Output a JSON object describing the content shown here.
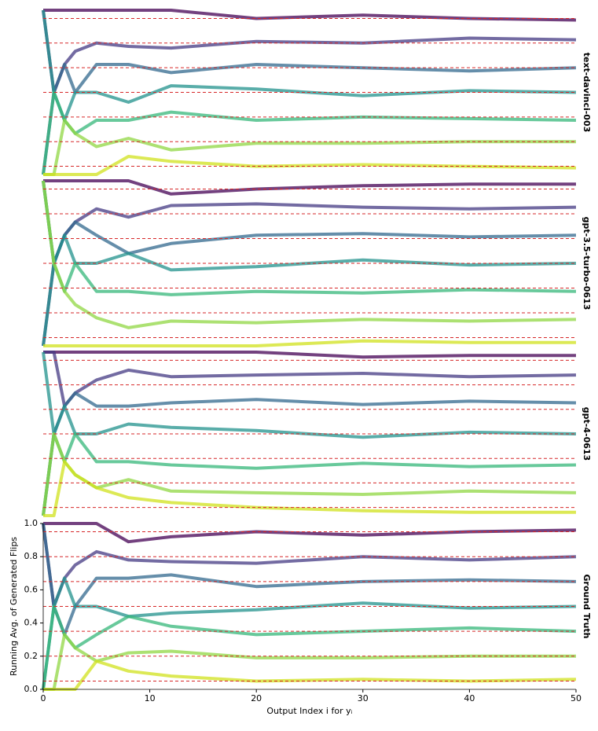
{
  "chart_data": [
    {
      "type": "line",
      "panel_label": "text-davinci-003",
      "x": [
        0,
        1,
        2,
        3,
        5,
        8,
        12,
        20,
        30,
        40,
        50
      ],
      "xlim": [
        0,
        50
      ],
      "ylim": [
        0,
        1
      ],
      "series": [
        {
          "color": "#440154",
          "target": 0.95,
          "values": [
            1,
            1,
            1,
            1,
            1,
            1,
            1,
            0.95,
            0.97,
            0.95,
            0.94
          ]
        },
        {
          "color": "#443a83",
          "target": 0.8,
          "values": [
            1,
            0.5,
            0.67,
            0.75,
            0.8,
            0.78,
            0.77,
            0.81,
            0.8,
            0.83,
            0.82
          ]
        },
        {
          "color": "#31688e",
          "target": 0.65,
          "values": [
            0,
            0.5,
            0.67,
            0.5,
            0.67,
            0.67,
            0.62,
            0.67,
            0.65,
            0.63,
            0.65
          ]
        },
        {
          "color": "#21918c",
          "target": 0.5,
          "values": [
            1,
            0.5,
            0.33,
            0.5,
            0.5,
            0.44,
            0.54,
            0.52,
            0.48,
            0.51,
            0.5
          ]
        },
        {
          "color": "#35b779",
          "target": 0.35,
          "values": [
            0,
            0.5,
            0.33,
            0.25,
            0.33,
            0.33,
            0.38,
            0.33,
            0.35,
            0.34,
            0.33
          ]
        },
        {
          "color": "#90d743",
          "target": 0.2,
          "values": [
            0,
            0,
            0.33,
            0.25,
            0.17,
            0.22,
            0.15,
            0.19,
            0.19,
            0.2,
            0.2
          ]
        },
        {
          "color": "#d0e11c",
          "target": 0.05,
          "values": [
            0,
            0,
            0,
            0,
            0,
            0.11,
            0.08,
            0.05,
            0.06,
            0.05,
            0.04
          ]
        }
      ]
    },
    {
      "type": "line",
      "panel_label": "gpt-3.5-turbo-0613",
      "x": [
        0,
        1,
        2,
        3,
        5,
        8,
        12,
        20,
        30,
        40,
        50
      ],
      "xlim": [
        0,
        50
      ],
      "ylim": [
        0,
        1
      ],
      "series": [
        {
          "color": "#440154",
          "target": 0.95,
          "values": [
            1,
            1,
            1,
            1,
            1,
            1,
            0.92,
            0.95,
            0.97,
            0.98,
            0.98
          ]
        },
        {
          "color": "#443a83",
          "target": 0.8,
          "values": [
            0,
            0.5,
            0.67,
            0.75,
            0.83,
            0.78,
            0.85,
            0.86,
            0.84,
            0.83,
            0.84
          ]
        },
        {
          "color": "#31688e",
          "target": 0.65,
          "values": [
            1,
            0.5,
            0.67,
            0.75,
            0.67,
            0.56,
            0.62,
            0.67,
            0.68,
            0.66,
            0.67
          ]
        },
        {
          "color": "#21918c",
          "target": 0.5,
          "values": [
            0,
            0.5,
            0.67,
            0.5,
            0.5,
            0.56,
            0.46,
            0.48,
            0.52,
            0.49,
            0.5
          ]
        },
        {
          "color": "#35b779",
          "target": 0.35,
          "values": [
            1,
            0.5,
            0.33,
            0.5,
            0.33,
            0.33,
            0.31,
            0.33,
            0.32,
            0.34,
            0.33
          ]
        },
        {
          "color": "#90d743",
          "target": 0.2,
          "values": [
            1,
            0.5,
            0.33,
            0.25,
            0.17,
            0.11,
            0.15,
            0.14,
            0.16,
            0.15,
            0.16
          ]
        },
        {
          "color": "#d0e11c",
          "target": 0.05,
          "values": [
            0,
            0,
            0,
            0,
            0,
            0,
            0,
            0,
            0.03,
            0.02,
            0.02
          ]
        }
      ]
    },
    {
      "type": "line",
      "panel_label": "gpt-4-0613",
      "x": [
        0,
        1,
        2,
        3,
        5,
        8,
        12,
        20,
        30,
        40,
        50
      ],
      "xlim": [
        0,
        50
      ],
      "ylim": [
        0,
        1
      ],
      "series": [
        {
          "color": "#440154",
          "target": 0.95,
          "values": [
            1,
            1,
            1,
            1,
            1,
            1,
            1,
            1,
            0.97,
            0.98,
            0.98
          ]
        },
        {
          "color": "#443a83",
          "target": 0.8,
          "values": [
            1,
            1,
            0.67,
            0.75,
            0.83,
            0.89,
            0.85,
            0.86,
            0.87,
            0.85,
            0.86
          ]
        },
        {
          "color": "#31688e",
          "target": 0.65,
          "values": [
            0,
            0.5,
            0.67,
            0.75,
            0.67,
            0.67,
            0.69,
            0.71,
            0.68,
            0.7,
            0.69
          ]
        },
        {
          "color": "#21918c",
          "target": 0.5,
          "values": [
            1,
            0.5,
            0.67,
            0.5,
            0.5,
            0.56,
            0.54,
            0.52,
            0.48,
            0.51,
            0.5
          ]
        },
        {
          "color": "#35b779",
          "target": 0.35,
          "values": [
            0,
            0.5,
            0.33,
            0.5,
            0.33,
            0.33,
            0.31,
            0.29,
            0.32,
            0.3,
            0.31
          ]
        },
        {
          "color": "#90d743",
          "target": 0.2,
          "values": [
            0,
            0.5,
            0.33,
            0.25,
            0.17,
            0.22,
            0.15,
            0.14,
            0.13,
            0.15,
            0.14
          ]
        },
        {
          "color": "#d0e11c",
          "target": 0.05,
          "values": [
            0,
            0,
            0.33,
            0.25,
            0.17,
            0.11,
            0.08,
            0.05,
            0.03,
            0.02,
            0.02
          ]
        }
      ]
    },
    {
      "type": "line",
      "panel_label": "Ground Truth",
      "x": [
        0,
        1,
        2,
        3,
        5,
        8,
        12,
        20,
        30,
        40,
        50
      ],
      "xlim": [
        0,
        50
      ],
      "ylim": [
        0,
        1
      ],
      "xticks": [
        0,
        10,
        20,
        30,
        40,
        50
      ],
      "yticks": [
        {
          "value": 0,
          "label": "0.0"
        },
        0.2,
        0.4,
        0.6,
        0.8,
        {
          "value": 1,
          "label": "1.0"
        }
      ],
      "xlabel": "Output Index i for yᵢ",
      "ylabel": "Running Avg. of Generated Flips",
      "series": [
        {
          "color": "#440154",
          "target": 0.95,
          "values": [
            1,
            1,
            1,
            1,
            1,
            0.89,
            0.92,
            0.95,
            0.93,
            0.95,
            0.96
          ]
        },
        {
          "color": "#443a83",
          "target": 0.8,
          "values": [
            1,
            0.5,
            0.67,
            0.75,
            0.83,
            0.78,
            0.77,
            0.76,
            0.8,
            0.78,
            0.8
          ]
        },
        {
          "color": "#31688e",
          "target": 0.65,
          "values": [
            1,
            0.5,
            0.33,
            0.5,
            0.67,
            0.67,
            0.69,
            0.62,
            0.65,
            0.66,
            0.65
          ]
        },
        {
          "color": "#21918c",
          "target": 0.5,
          "values": [
            0,
            0.5,
            0.67,
            0.5,
            0.5,
            0.44,
            0.46,
            0.48,
            0.52,
            0.49,
            0.5
          ]
        },
        {
          "color": "#35b779",
          "target": 0.35,
          "values": [
            0,
            0.5,
            0.33,
            0.25,
            0.33,
            0.44,
            0.38,
            0.33,
            0.35,
            0.37,
            0.35
          ]
        },
        {
          "color": "#90d743",
          "target": 0.2,
          "values": [
            0,
            0,
            0.33,
            0.25,
            0.17,
            0.22,
            0.23,
            0.19,
            0.19,
            0.2,
            0.2
          ]
        },
        {
          "color": "#d0e11c",
          "target": 0.05,
          "values": [
            0,
            0,
            0,
            0,
            0.17,
            0.11,
            0.08,
            0.05,
            0.06,
            0.05,
            0.06
          ]
        }
      ]
    }
  ]
}
